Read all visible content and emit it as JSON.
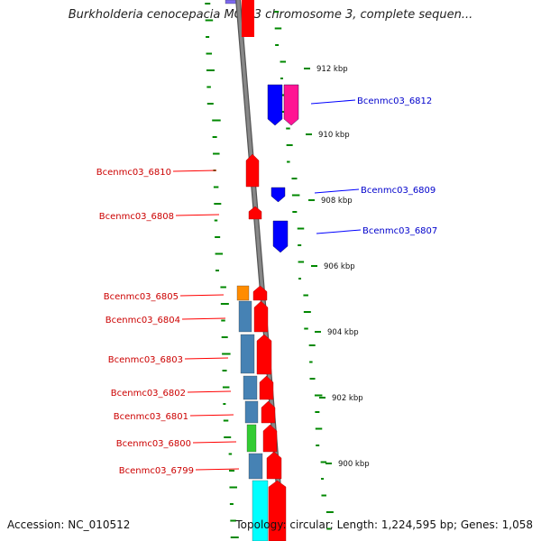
{
  "header": {
    "title": "Burkholderia cenocepacia MC0-3 chromosome 3, complete sequen..."
  },
  "footer": {
    "accession": "Accession: NC_010512",
    "summary": "Topology: circular; Length: 1,224,595 bp; Genes: 1,058"
  },
  "ticks": [
    "912 kbp",
    "910 kbp",
    "908 kbp",
    "906 kbp",
    "904 kbp",
    "902 kbp",
    "900 kbp"
  ],
  "genes_reverse": [
    "Bcenmc03_6810",
    "Bcenmc03_6808",
    "Bcenmc03_6805",
    "Bcenmc03_6804",
    "Bcenmc03_6803",
    "Bcenmc03_6802",
    "Bcenmc03_6801",
    "Bcenmc03_6800",
    "Bcenmc03_6799"
  ],
  "genes_forward": [
    "Bcenmc03_6812",
    "Bcenmc03_6809",
    "Bcenmc03_6807"
  ],
  "colors": {
    "reverse_strand": "#ff0000",
    "reverse_label": "#cc0000",
    "forward_strand": "#0000ff",
    "forward_label": "#0000cc",
    "backbone": "#888888",
    "gc_dash": "#008800",
    "cog_blue": "#4682b4",
    "cog_orange": "#ff8c00",
    "cog_green": "#33cc33",
    "cog_cyan": "#00ffff",
    "cog_magenta": "#ff1493",
    "cog_purple": "#7b68ee"
  }
}
